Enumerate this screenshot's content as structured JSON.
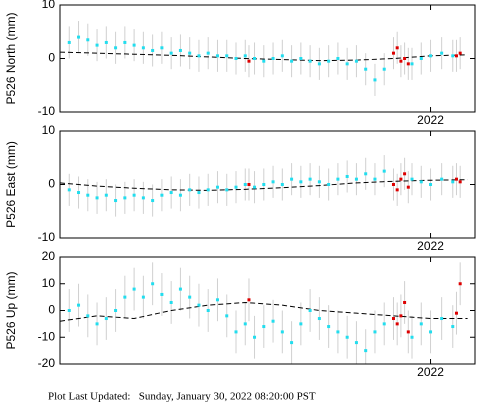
{
  "chart_data": [
    {
      "type": "scatter",
      "ylabel": "P526 North (mm)",
      "ylim": [
        -10,
        10
      ],
      "yticks": [
        -10,
        0,
        10
      ],
      "xlim": [
        2021.0,
        2022.12
      ],
      "xticks": [
        {
          "value": 2022,
          "label": "2022"
        }
      ],
      "series": [
        {
          "mode": "points",
          "color": "#22ddee",
          "error": 3,
          "x": [
            2021.025,
            2021.05,
            2021.075,
            2021.1,
            2021.125,
            2021.15,
            2021.175,
            2021.2,
            2021.225,
            2021.25,
            2021.275,
            2021.3,
            2021.325,
            2021.35,
            2021.375,
            2021.4,
            2021.425,
            2021.45,
            2021.475,
            2021.5,
            2021.525,
            2021.55,
            2021.575,
            2021.6,
            2021.625,
            2021.65,
            2021.675,
            2021.7,
            2021.725,
            2021.75,
            2021.775,
            2021.8,
            2021.825,
            2021.85,
            2021.875,
            2021.95,
            2021.975,
            2022.0,
            2022.03,
            2022.06
          ],
          "values": [
            3,
            4,
            3.5,
            2.5,
            3,
            2,
            3,
            2.5,
            2,
            1.5,
            2,
            1,
            1.5,
            1,
            0.5,
            1,
            0.5,
            0.5,
            0,
            0.5,
            0,
            -0.5,
            0,
            0.5,
            -0.5,
            0,
            -0.5,
            -1,
            -0.5,
            0,
            -1,
            -0.5,
            -2,
            -4,
            -2,
            -1,
            0,
            0.5,
            1,
            0.5
          ]
        },
        {
          "mode": "points",
          "color": "#dd0000",
          "error": 3,
          "x": [
            2021.51,
            2021.9,
            2021.91,
            2021.92,
            2021.93,
            2021.94,
            2022.07,
            2022.08
          ],
          "values": [
            -0.5,
            1,
            2,
            -0.5,
            0,
            -1,
            0.5,
            1
          ]
        },
        {
          "mode": "line",
          "color": "#000000",
          "x": [
            2021.0,
            2021.1,
            2021.2,
            2021.3,
            2021.4,
            2021.5,
            2021.6,
            2021.7,
            2021.8,
            2021.9,
            2022.0,
            2022.1
          ],
          "values": [
            1.2,
            1.0,
            0.8,
            0.6,
            0.3,
            0,
            -0.2,
            -0.4,
            -0.3,
            0,
            0.5,
            0.7
          ]
        }
      ]
    },
    {
      "type": "scatter",
      "ylabel": "P526 East (mm)",
      "ylim": [
        -10,
        10
      ],
      "yticks": [
        -10,
        0,
        10
      ],
      "xlim": [
        2021.0,
        2022.12
      ],
      "xticks": [
        {
          "value": 2022,
          "label": "2022"
        }
      ],
      "series": [
        {
          "mode": "points",
          "color": "#22ddee",
          "error": 3,
          "x": [
            2021.025,
            2021.05,
            2021.075,
            2021.1,
            2021.125,
            2021.15,
            2021.175,
            2021.2,
            2021.225,
            2021.25,
            2021.275,
            2021.3,
            2021.325,
            2021.35,
            2021.375,
            2021.4,
            2021.425,
            2021.45,
            2021.475,
            2021.5,
            2021.525,
            2021.55,
            2021.575,
            2021.6,
            2021.625,
            2021.65,
            2021.675,
            2021.7,
            2021.725,
            2021.75,
            2021.775,
            2021.8,
            2021.825,
            2021.85,
            2021.875,
            2021.95,
            2021.975,
            2022.0,
            2022.03,
            2022.06
          ],
          "values": [
            -1,
            -1.5,
            -2,
            -2.5,
            -2,
            -3,
            -2.5,
            -2,
            -2.5,
            -3,
            -2,
            -1.5,
            -2,
            -1,
            -1.5,
            -1,
            -0.5,
            -1,
            -0.5,
            0,
            -0.5,
            0,
            0.5,
            0,
            1,
            0.5,
            1,
            0.5,
            0,
            1,
            1.5,
            1,
            2,
            1,
            2.5,
            1,
            0.5,
            0,
            1,
            0.5
          ]
        },
        {
          "mode": "points",
          "color": "#dd0000",
          "error": 3,
          "x": [
            2021.51,
            2021.9,
            2021.91,
            2021.92,
            2021.93,
            2021.94,
            2022.07,
            2022.08
          ],
          "values": [
            0,
            0,
            -1,
            1,
            2,
            -0.5,
            1,
            0.5
          ]
        },
        {
          "mode": "line",
          "color": "#000000",
          "x": [
            2021.0,
            2021.1,
            2021.2,
            2021.3,
            2021.4,
            2021.5,
            2021.6,
            2021.7,
            2021.8,
            2021.9,
            2022.0,
            2022.1
          ],
          "values": [
            0.3,
            -0.3,
            -0.7,
            -1.0,
            -1.1,
            -0.9,
            -0.6,
            -0.2,
            0.3,
            0.6,
            0.8,
            0.9
          ]
        }
      ]
    },
    {
      "type": "scatter",
      "ylabel": "P526 Up (mm)",
      "ylim": [
        -20,
        20
      ],
      "yticks": [
        -20,
        -10,
        0,
        10,
        20
      ],
      "xlim": [
        2021.0,
        2022.12
      ],
      "xticks": [
        {
          "value": 2022,
          "label": "2022"
        }
      ],
      "series": [
        {
          "mode": "points",
          "color": "#22ddee",
          "error": 8,
          "x": [
            2021.025,
            2021.05,
            2021.075,
            2021.1,
            2021.125,
            2021.15,
            2021.175,
            2021.2,
            2021.225,
            2021.25,
            2021.275,
            2021.3,
            2021.325,
            2021.35,
            2021.375,
            2021.4,
            2021.425,
            2021.45,
            2021.475,
            2021.5,
            2021.525,
            2021.55,
            2021.575,
            2021.6,
            2021.625,
            2021.65,
            2021.675,
            2021.7,
            2021.725,
            2021.75,
            2021.775,
            2021.8,
            2021.825,
            2021.85,
            2021.875,
            2021.95,
            2021.975,
            2022.0,
            2022.03,
            2022.06
          ],
          "values": [
            0,
            2,
            -2,
            -5,
            -3,
            0,
            5,
            8,
            5,
            10,
            6,
            3,
            8,
            5,
            2,
            0,
            4,
            -2,
            -8,
            -5,
            -10,
            -6,
            -4,
            -8,
            -12,
            -5,
            0,
            -3,
            -6,
            -8,
            -10,
            -12,
            -15,
            -8,
            -5,
            -10,
            -5,
            -8,
            -3,
            -6
          ]
        },
        {
          "mode": "points",
          "color": "#dd0000",
          "error": 8,
          "x": [
            2021.51,
            2021.9,
            2021.91,
            2021.92,
            2021.93,
            2021.94,
            2022.07,
            2022.08
          ],
          "values": [
            4,
            -3,
            -5,
            -2,
            3,
            -8,
            -1,
            10
          ]
        },
        {
          "mode": "line",
          "color": "#000000",
          "x": [
            2021.0,
            2021.1,
            2021.2,
            2021.3,
            2021.4,
            2021.5,
            2021.6,
            2021.7,
            2021.8,
            2021.9,
            2022.0,
            2022.1
          ],
          "values": [
            -4,
            -2,
            -3,
            0,
            2,
            3,
            2,
            0,
            -1,
            -2,
            -3,
            -3
          ]
        }
      ]
    }
  ],
  "footer": "Plot Last Updated:   Sunday, January 30, 2022 08:20:00 PST"
}
